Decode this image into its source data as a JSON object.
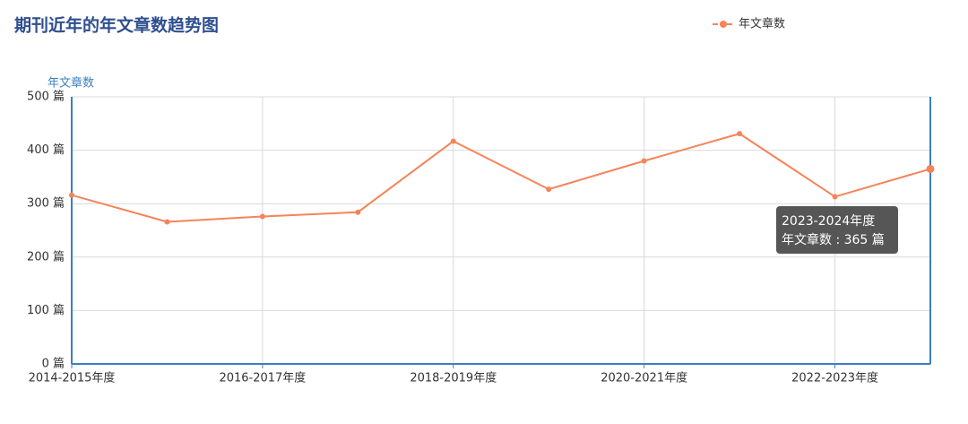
{
  "chart_data": {
    "type": "line",
    "title": "期刊近年的年文章数趋势图",
    "y_axis_label": "年文章数",
    "categories": [
      "2014-2015年度",
      null,
      "2016-2017年度",
      null,
      "2018-2019年度",
      null,
      "2020-2021年度",
      null,
      "2022-2023年度",
      null
    ],
    "series": [
      {
        "name": "年文章数",
        "color": "#f5845a",
        "values": [
          316,
          266,
          276,
          284,
          417,
          327,
          380,
          431,
          313,
          365
        ]
      }
    ],
    "ylim": [
      0,
      500
    ],
    "yticks": [
      {
        "value": 0,
        "label": "0 篇"
      },
      {
        "value": 100,
        "label": "100 篇"
      },
      {
        "value": 200,
        "label": "200 篇"
      },
      {
        "value": 300,
        "label": "300 篇"
      },
      {
        "value": 400,
        "label": "400 篇"
      },
      {
        "value": 500,
        "label": "500 篇"
      }
    ],
    "grid": true,
    "legend": "top-right",
    "tooltip": {
      "index": 9,
      "title": "2023-2024年度",
      "text": "年文章数 : 365 篇"
    }
  }
}
